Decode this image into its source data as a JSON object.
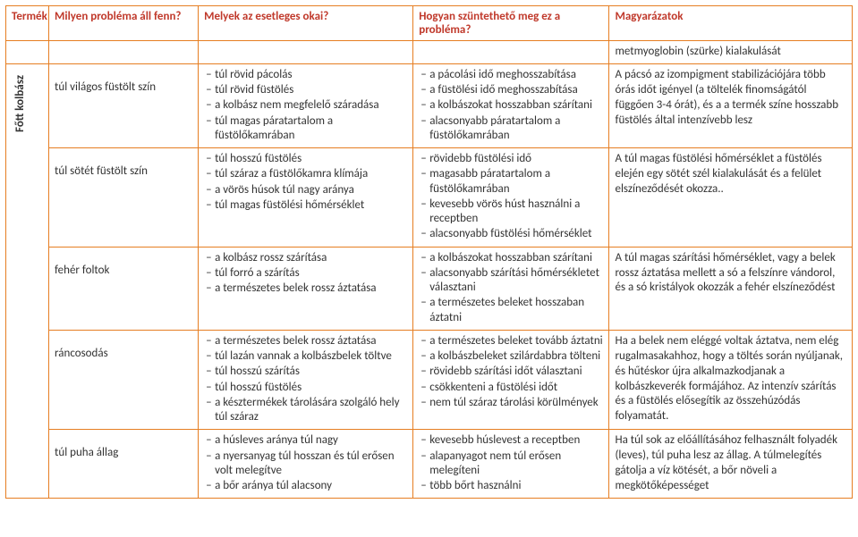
{
  "headers": {
    "product": "Termék",
    "problem": "Milyen probléma áll fenn?",
    "causes": "Melyek az esetleges okai?",
    "fix": "Hogyan szüntethető meg ez a probléma?",
    "notes": "Magyarázatok"
  },
  "productLabel": "Főtt kolbász",
  "preNote": "metmyoglobin (szürke) kialakulását",
  "rows": [
    {
      "problem": "túl világos füstölt szín",
      "causes": [
        "túl rövid pácolás",
        "túl rövid füstölés",
        "a kolbász nem megfelelő száradása",
        "túl magas páratartalom a füstölőkamrában"
      ],
      "fixes": [
        "a pácolási idő meghosszabítása",
        "a füstölési  idő meghosszabítása",
        "a kolbászokat hosszabban szárítani",
        "alacsonyabb páratartalom a füstölőkamrában"
      ],
      "note": "A pácsó az izompigment stabilizációjára több órás időt igényel (a töltelék finomságától függően 3-4 órát), és a a termék színe hosszabb füstölés által intenzívebb lesz"
    },
    {
      "problem": "túl sötét füstölt szín",
      "causes": [
        "túl hosszú füstölés",
        "túl száraz a füstölőkamra klímája",
        "a vörös húsok túl nagy aránya",
        "túl magas füstölési hőmérséklet"
      ],
      "fixes": [
        "rövidebb füstölési  idő",
        "magasabb páratartalom a füstölőkamrában",
        "kevesebb vörös húst használni a receptben",
        "alacsonyabb füstölési hőmérséklet"
      ],
      "note": "A túl magas füstölési hőmérséklet a füstölés elején egy sötét szél kialakulását és a felület elszíneződését okozza.."
    },
    {
      "problem": "fehér foltok",
      "causes": [
        "a kolbász rossz szárítása",
        "túl forró  a szárítás",
        "a természetes belek rossz áztatása"
      ],
      "fixes": [
        "a kolbászokat hosszabban szárítani",
        "alacsonyabb szárítási hőmérsékletet választani",
        "a természetes beleket hosszaban áztatni"
      ],
      "note": "A túl magas szárítási hőmérséklet, vagy a belek rossz áztatása mellett a só a felszínre vándorol, és a só kristályok okozzák a fehér elszíneződést"
    },
    {
      "problem": "ráncosodás",
      "causes": [
        "a természetes belek rossz áztatása",
        "túl lazán vannak a kolbászbelek töltve",
        "túl hosszú szárítás",
        "túl hosszú füstölés",
        "a késztermékek tárolására szolgáló hely túl száraz"
      ],
      "fixes": [
        "a természetes beleket  tovább áztatni",
        "a kolbászbeleket  szilárdabbra tölteni",
        "rövidebb szárítási időt választani",
        "csökkenteni a füstölési időt",
        "nem túl száraz tárolási körülmények"
      ],
      "note": "Ha a belek nem  eléggé voltak áztatva, nem elég rugalmasakahhoz, hogy  a töltés során nyúljanak, és hűtéskor újra alkalmazkodjanak a kolbászkeverék formájához. Az intenzív szárítás és a füstölés elősegítik az összehúzódás folyamatát."
    },
    {
      "problem": "túl puha állag",
      "causes": [
        "a húsleves aránya túl nagy",
        "a nyersanyag túl hosszan és túl erősen volt melegítve",
        "a bőr aránya túl alacsony"
      ],
      "fixes": [
        "kevesebb  húslevest a receptben",
        "alapanyagot nem túl erősen melegíteni",
        "több bőrt  használni"
      ],
      "note": "Ha túl sok az előállításához felhasznált folyadék (leves), túl puha lesz az állag. A túlmelegítés gátolja a víz kötését, a bőr növeli a megkötőképességet"
    }
  ]
}
